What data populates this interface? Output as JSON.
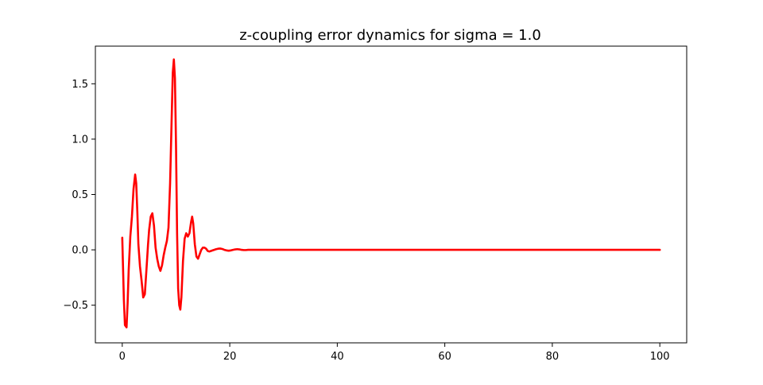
{
  "chart_data": {
    "type": "line",
    "title": "z-coupling error dynamics for sigma = 1.0",
    "xlabel": "",
    "ylabel": "",
    "xlim": [
      -5,
      105
    ],
    "ylim": [
      -0.84,
      1.84
    ],
    "grid": false,
    "legend": "none",
    "x_ticks": [
      0,
      20,
      40,
      60,
      80,
      100
    ],
    "x_tick_labels": [
      "0",
      "20",
      "40",
      "60",
      "80",
      "100"
    ],
    "y_ticks": [
      -0.5,
      0.0,
      0.5,
      1.0,
      1.5
    ],
    "y_tick_labels": [
      "−0.5",
      "0.0",
      "0.5",
      "1.0",
      "1.5"
    ],
    "colors": {
      "line": "#ff0000",
      "axes": "#000000",
      "background": "#ffffff"
    },
    "series": [
      {
        "x": [
          0,
          0.3,
          0.5,
          0.8,
          1.0,
          1.2,
          1.5,
          1.8,
          2.1,
          2.4,
          2.6,
          2.8,
          3.0,
          3.3,
          3.6,
          3.9,
          4.2,
          4.5,
          4.8,
          5.0,
          5.3,
          5.6,
          5.9,
          6.2,
          6.5,
          6.8,
          7.1,
          7.4,
          7.7,
          8.0,
          8.3,
          8.6,
          8.9,
          9.2,
          9.4,
          9.6,
          9.8,
          10.0,
          10.2,
          10.4,
          10.6,
          10.8,
          11.0,
          11.3,
          11.6,
          11.9,
          12.2,
          12.5,
          12.8,
          13.0,
          13.2,
          13.5,
          13.8,
          14.1,
          14.4,
          14.7,
          15.0,
          15.3,
          15.6,
          15.9,
          16.2,
          16.5,
          16.8,
          17.1,
          17.4,
          17.8,
          18.2,
          18.6,
          19.0,
          19.4,
          19.8,
          20.2,
          20.6,
          21.0,
          21.4,
          21.8,
          22.2,
          22.6,
          23.0,
          23.4,
          23.8,
          24.2,
          24.6,
          25.0,
          26.0,
          28.0,
          30.0,
          35.0,
          40.0,
          50.0,
          60.0,
          70.0,
          80.0,
          90.0,
          100.0
        ],
        "y": [
          0.11,
          -0.45,
          -0.68,
          -0.7,
          -0.48,
          -0.18,
          0.12,
          0.3,
          0.55,
          0.68,
          0.6,
          0.35,
          0.05,
          -0.15,
          -0.28,
          -0.43,
          -0.4,
          -0.18,
          0.05,
          0.18,
          0.3,
          0.33,
          0.22,
          0.02,
          -0.08,
          -0.15,
          -0.19,
          -0.14,
          -0.05,
          0.02,
          0.08,
          0.2,
          0.6,
          1.2,
          1.6,
          1.72,
          1.55,
          0.95,
          0.15,
          -0.35,
          -0.5,
          -0.54,
          -0.43,
          -0.1,
          0.1,
          0.15,
          0.12,
          0.15,
          0.25,
          0.3,
          0.24,
          0.05,
          -0.06,
          -0.08,
          -0.04,
          0.0,
          0.02,
          0.02,
          0.01,
          -0.01,
          -0.015,
          -0.01,
          -0.005,
          0.0,
          0.005,
          0.01,
          0.012,
          0.008,
          0.0,
          -0.005,
          -0.008,
          -0.005,
          0.0,
          0.004,
          0.006,
          0.004,
          0.0,
          -0.002,
          -0.002,
          0.0,
          0.0,
          0.0,
          0.0,
          0.0,
          0.0,
          0.0,
          0.0,
          0.0,
          0.0,
          0.0,
          0.0,
          0.0,
          0.0,
          0.0,
          0.0
        ]
      }
    ]
  }
}
